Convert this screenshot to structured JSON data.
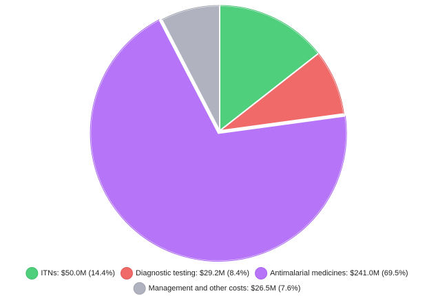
{
  "chart_data": {
    "type": "pie",
    "categories": [
      "ITNs: $50.0M (14.4%)",
      "Diagnostic testing: $29.2M (8.4%)",
      "Antimalarial medicines: $241.0M (69.5%)",
      "Management and other costs: $26.5M (7.6%)"
    ],
    "values": [
      50.0,
      29.2,
      241.0,
      26.5
    ],
    "colors": [
      "#4fcf7c",
      "#f06a6a",
      "#b675f9",
      "#b0b3bf"
    ],
    "edge_colors": [
      "#3fbf6c",
      "#e05858",
      "#a862ef",
      "#9fa2ae"
    ],
    "legend": "bottom"
  }
}
